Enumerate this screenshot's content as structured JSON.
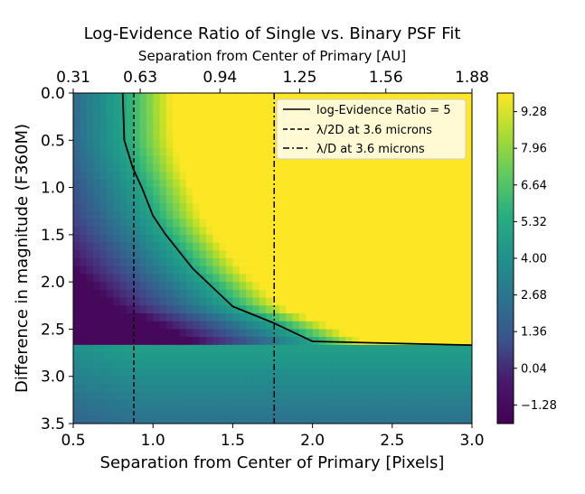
{
  "chart_data": {
    "type": "heatmap",
    "title": "Log-Evidence Ratio of Single vs. Binary PSF Fit",
    "xlabel": "Separation from Center of Primary [Pixels]",
    "ylabel": "Difference in magnitude (F360M)",
    "top_xlabel": "Separation from Center of Primary [AU]",
    "xlim": [
      0.5,
      3.0
    ],
    "ylim": [
      0.0,
      3.5
    ],
    "y_inverted": true,
    "x_ticks": [
      0.5,
      1.0,
      1.5,
      2.0,
      2.5,
      3.0
    ],
    "x_tick_labels": [
      "0.5",
      "1.0",
      "1.5",
      "2.0",
      "2.5",
      "3.0"
    ],
    "y_ticks": [
      0.0,
      0.5,
      1.0,
      1.5,
      2.0,
      2.5,
      3.0,
      3.5
    ],
    "y_tick_labels": [
      "0.0",
      "0.5",
      "1.0",
      "1.5",
      "2.0",
      "2.5",
      "3.0",
      "3.5"
    ],
    "top_x_ticks": [
      0.5,
      0.92,
      1.42,
      1.92,
      2.46,
      3.0
    ],
    "top_x_tick_labels": [
      "0.31",
      "0.63",
      "0.94",
      "1.25",
      "1.56",
      "1.88"
    ],
    "colorbar": {
      "min": -1.95,
      "max": 9.95,
      "ticks": [
        -1.28,
        0.04,
        1.36,
        2.68,
        4.0,
        5.32,
        6.64,
        7.96,
        9.28
      ],
      "tick_labels": [
        "−1.28",
        "0.04",
        "1.36",
        "2.68",
        "4.00",
        "5.32",
        "6.64",
        "7.96",
        "9.28"
      ],
      "colormap": "viridis"
    },
    "contour_level": 5,
    "series": [
      {
        "name": "log-Evidence Ratio = 5",
        "style": "solid",
        "points": [
          [
            0.81,
            0.0
          ],
          [
            0.82,
            0.5
          ],
          [
            0.875,
            0.8
          ],
          [
            0.93,
            1.0
          ],
          [
            1.0,
            1.3
          ],
          [
            1.08,
            1.5
          ],
          [
            1.25,
            1.86
          ],
          [
            1.5,
            2.26
          ],
          [
            1.75,
            2.43
          ],
          [
            2.0,
            2.63
          ],
          [
            3.0,
            2.67
          ]
        ]
      },
      {
        "name": "λ/2D at 3.6 microns",
        "style": "dashed",
        "x": 0.88
      },
      {
        "name": "λ/D at 3.6 microns",
        "style": "dashdot",
        "x": 1.76
      }
    ],
    "legend_position": "top-right"
  }
}
